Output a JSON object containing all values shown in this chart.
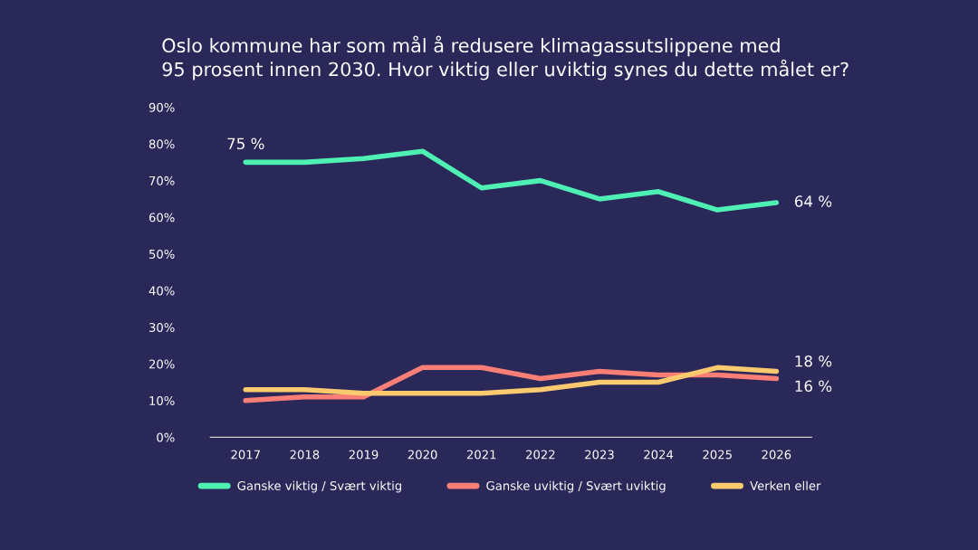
{
  "chart_data": {
    "type": "line",
    "title": "Oslo kommune har som mål å redusere klimagassutslippene med\n95 prosent innen 2030. Hvor viktig eller uviktig synes du dette målet er?",
    "categories": [
      "2017",
      "2018",
      "2019",
      "2020",
      "2021",
      "2022",
      "2023",
      "2024",
      "2025",
      "2026"
    ],
    "series": [
      {
        "name": "Ganske viktig / Svært viktig",
        "color": "#4ef0b4",
        "values": [
          75,
          75,
          76,
          78,
          68,
          70,
          65,
          67,
          62,
          64
        ]
      },
      {
        "name": "Ganske uviktig / Svært uviktig",
        "color": "#f97f76",
        "values": [
          10,
          11,
          11,
          19,
          19,
          16,
          18,
          17,
          17,
          16
        ]
      },
      {
        "name": "Verken eller",
        "color": "#fbc96e",
        "values": [
          13,
          13,
          12,
          12,
          12,
          13,
          15,
          15,
          19,
          18
        ]
      }
    ],
    "ylim": [
      0,
      90
    ],
    "yticks": [
      {
        "value": 0,
        "label": "0%"
      },
      {
        "value": 10,
        "label": "10%"
      },
      {
        "value": 20,
        "label": "20%"
      },
      {
        "value": 30,
        "label": "30%"
      },
      {
        "value": 40,
        "label": "40%"
      },
      {
        "value": 50,
        "label": "50%"
      },
      {
        "value": 60,
        "label": "60%"
      },
      {
        "value": 70,
        "label": "70%"
      },
      {
        "value": 80,
        "label": "80%"
      },
      {
        "value": 90,
        "label": "90%"
      }
    ],
    "annotations": [
      {
        "text": "75 %",
        "x": "2017",
        "y": 75
      },
      {
        "text": "64 %",
        "x": "2026",
        "y": 64
      },
      {
        "text": "18 %",
        "x": "2026",
        "y": 18
      },
      {
        "text": "16 %",
        "x": "2026",
        "y": 16
      }
    ],
    "grid": false,
    "legend": "bottom",
    "marker": "none",
    "line_style": "solid"
  }
}
